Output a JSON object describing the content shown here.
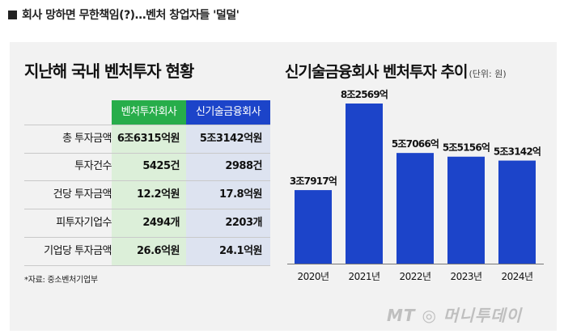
{
  "caption": "회사 망하면 무한책임(?)…벤처 창업자들 '덜덜'",
  "table": {
    "title": "지난해 국내 벤처투자 현황",
    "col_headers": [
      "벤처투자회사",
      "신기술금융회사"
    ],
    "rows": [
      {
        "label": "총 투자금액",
        "venture": "6조6315억원",
        "newtech": "5조3142억원"
      },
      {
        "label": "투자건수",
        "venture": "5425건",
        "newtech": "2988건"
      },
      {
        "label": "건당 투자금액",
        "venture": "12.2억원",
        "newtech": "17.8억원"
      },
      {
        "label": "피투자기업수",
        "venture": "2494개",
        "newtech": "2203개"
      },
      {
        "label": "기업당 투자금액",
        "venture": "26.6억원",
        "newtech": "24.1억원"
      }
    ],
    "source": "*자료: 중소벤처기업부",
    "colors": {
      "venture_header": "#27ad4a",
      "newtech_header": "#1c44c9",
      "venture_bg": "#dcefd9",
      "newtech_bg": "#dde3f0"
    }
  },
  "chart_data": {
    "type": "bar",
    "title": "신기술금융회사 벤처투자 추이",
    "unit_note": "(단위: 원)",
    "categories": [
      "2020년",
      "2021년",
      "2022년",
      "2023년",
      "2024년"
    ],
    "values": [
      37917,
      82569,
      57066,
      55156,
      53142
    ],
    "value_labels": [
      "3조7917억",
      "8조2569억",
      "5조7066억",
      "5조5156억",
      "5조3142억"
    ],
    "bar_color": "#1c44c9",
    "ylim": [
      0,
      82569
    ]
  },
  "watermark": "MT ◎ 머니투데이"
}
